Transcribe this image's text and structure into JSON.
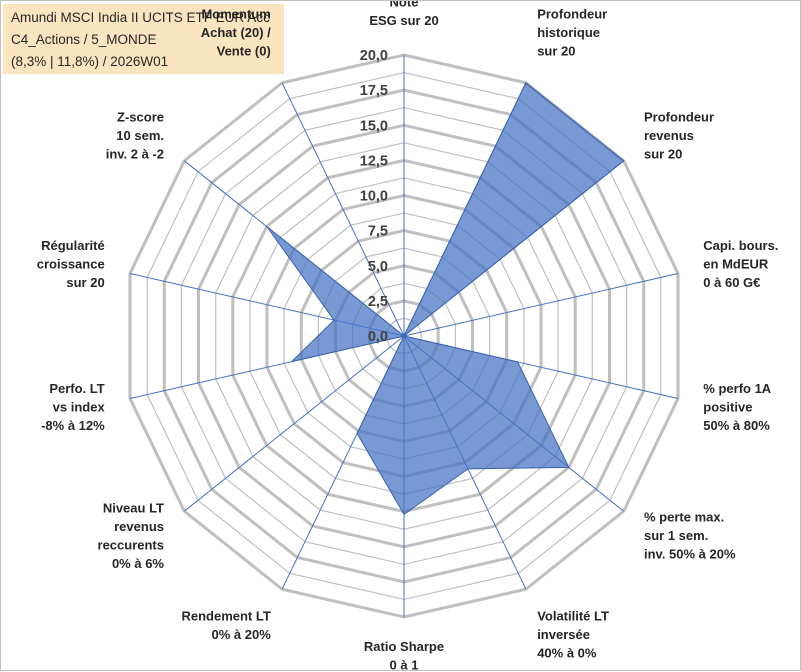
{
  "title_box": {
    "line1": "Amundi MSCI India II UCITS ETF EUR Acc",
    "line2": "C4_Actions / 5_MONDE",
    "line3": "(8,3% | 11,8%) / 2026W01"
  },
  "colors": {
    "fill": "#4472c4",
    "grid": "#bfbfbf",
    "spoke": "#4472c4",
    "title_bg": "#fbe5c0",
    "momentum_text": "#c9b27a"
  },
  "chart_data": {
    "type": "radar",
    "rmax": 20,
    "ticks": [
      "0,0",
      "2,5",
      "5,0",
      "7,5",
      "10,0",
      "12,5",
      "15,0",
      "17,5",
      "20,0"
    ],
    "tick_values": [
      0,
      2.5,
      5,
      7.5,
      10,
      12.5,
      15,
      17.5,
      20
    ],
    "minor_step": 1.25,
    "axes": [
      {
        "lines": [
          "Note",
          "ESG sur 20"
        ],
        "value": 0
      },
      {
        "lines": [
          "Profondeur",
          "historique",
          "sur 20"
        ],
        "value": 20
      },
      {
        "lines": [
          "Profondeur",
          "revenus",
          "sur 20"
        ],
        "value": 20
      },
      {
        "lines": [
          "Capi. bours.",
          "en MdEUR",
          "0 à 60 G€"
        ],
        "value": 0
      },
      {
        "lines": [
          "% perfo 1A",
          "positive",
          "50% à 80%"
        ],
        "value": 8.3
      },
      {
        "lines": [
          "% perte max.",
          "sur 1 sem.",
          "inv. 50% à 20%"
        ],
        "value": 15
      },
      {
        "lines": [
          "Volatilité LT",
          "inversée",
          "40% à 0%"
        ],
        "value": 10.5
      },
      {
        "lines": [
          "Ratio Sharpe",
          "0 à 1"
        ],
        "value": 12.7
      },
      {
        "lines": [
          "Rendement LT",
          "0% à 20%"
        ],
        "value": 7.7
      },
      {
        "lines": [
          "Niveau LT",
          "revenus",
          "reccurents",
          "0% à 6%"
        ],
        "value": 0
      },
      {
        "lines": [
          "Perfo. LT",
          "vs index",
          "-8% à 12%"
        ],
        "value": 8.2
      },
      {
        "lines": [
          "Régularité",
          "croissance",
          "sur 20"
        ],
        "value": 5.1
      },
      {
        "lines": [
          "Z-score",
          "10 sem.",
          "inv. 2 à -2"
        ],
        "value": 12.5
      },
      {
        "lines": [
          "Momentum",
          "Achat (20) /",
          "Vente (0)"
        ],
        "value": 0
      }
    ]
  }
}
